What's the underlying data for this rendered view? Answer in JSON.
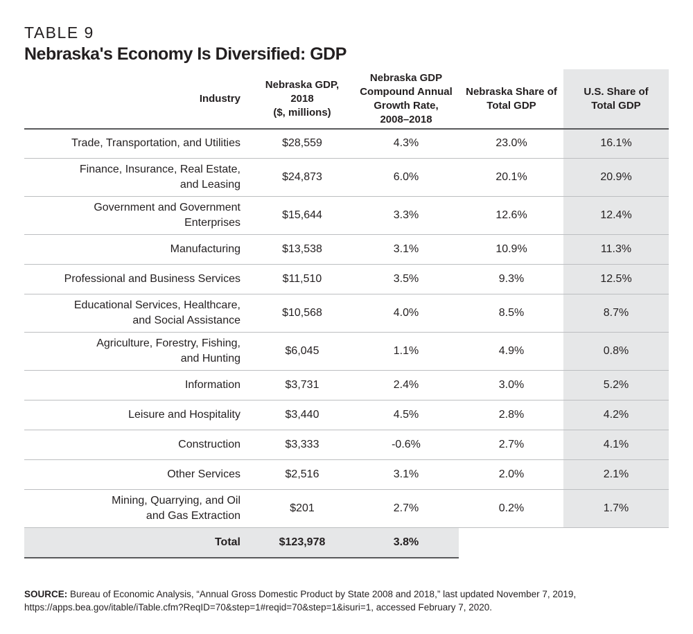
{
  "header": {
    "label": "TABLE 9",
    "title": "Nebraska's Economy Is Diversified: GDP"
  },
  "table": {
    "columns": [
      [
        "Industry"
      ],
      [
        "Nebraska GDP,",
        "2018",
        "($, millions)"
      ],
      [
        "Nebraska GDP",
        "Compound Annual",
        "Growth Rate,",
        "2008–2018"
      ],
      [
        "Nebraska Share of",
        "Total GDP"
      ],
      [
        "U.S. Share of",
        "Total GDP"
      ]
    ],
    "rows": [
      [
        [
          "Trade, Transportation, and Utilities"
        ],
        "$28,559",
        "4.3%",
        "23.0%",
        "16.1%"
      ],
      [
        [
          "Finance, Insurance, Real Estate,",
          "and Leasing"
        ],
        "$24,873",
        "6.0%",
        "20.1%",
        "20.9%"
      ],
      [
        [
          "Government and Government",
          "Enterprises"
        ],
        "$15,644",
        "3.3%",
        "12.6%",
        "12.4%"
      ],
      [
        [
          "Manufacturing"
        ],
        "$13,538",
        "3.1%",
        "10.9%",
        "11.3%"
      ],
      [
        [
          "Professional and Business Services"
        ],
        "$11,510",
        "3.5%",
        "9.3%",
        "12.5%"
      ],
      [
        [
          "Educational Services, Healthcare,",
          "and Social Assistance"
        ],
        "$10,568",
        "4.0%",
        "8.5%",
        "8.7%"
      ],
      [
        [
          "Agriculture, Forestry, Fishing,",
          "and Hunting"
        ],
        "$6,045",
        "1.1%",
        "4.9%",
        "0.8%"
      ],
      [
        [
          "Information"
        ],
        "$3,731",
        "2.4%",
        "3.0%",
        "5.2%"
      ],
      [
        [
          "Leisure and Hospitality"
        ],
        "$3,440",
        "4.5%",
        "2.8%",
        "4.2%"
      ],
      [
        [
          "Construction"
        ],
        "$3,333",
        "-0.6%",
        "2.7%",
        "4.1%"
      ],
      [
        [
          "Other Services"
        ],
        "$2,516",
        "3.1%",
        "2.0%",
        "2.1%"
      ],
      [
        [
          "Mining, Quarrying, and Oil",
          "and Gas Extraction"
        ],
        "$201",
        "2.7%",
        "0.2%",
        "1.7%"
      ]
    ],
    "total": [
      "Total",
      "$123,978",
      "3.8%"
    ]
  },
  "source": {
    "label": "SOURCE:",
    "lines": [
      "Bureau of Economic Analysis, “Annual Gross Domestic Product by State 2008 and 2018,” last updated November 7, 2019,",
      "https://apps.bea.gov/itable/iTable.cfm?ReqID=70&step=1#reqid=70&step=1&isuri=1, accessed February 7, 2020."
    ]
  }
}
